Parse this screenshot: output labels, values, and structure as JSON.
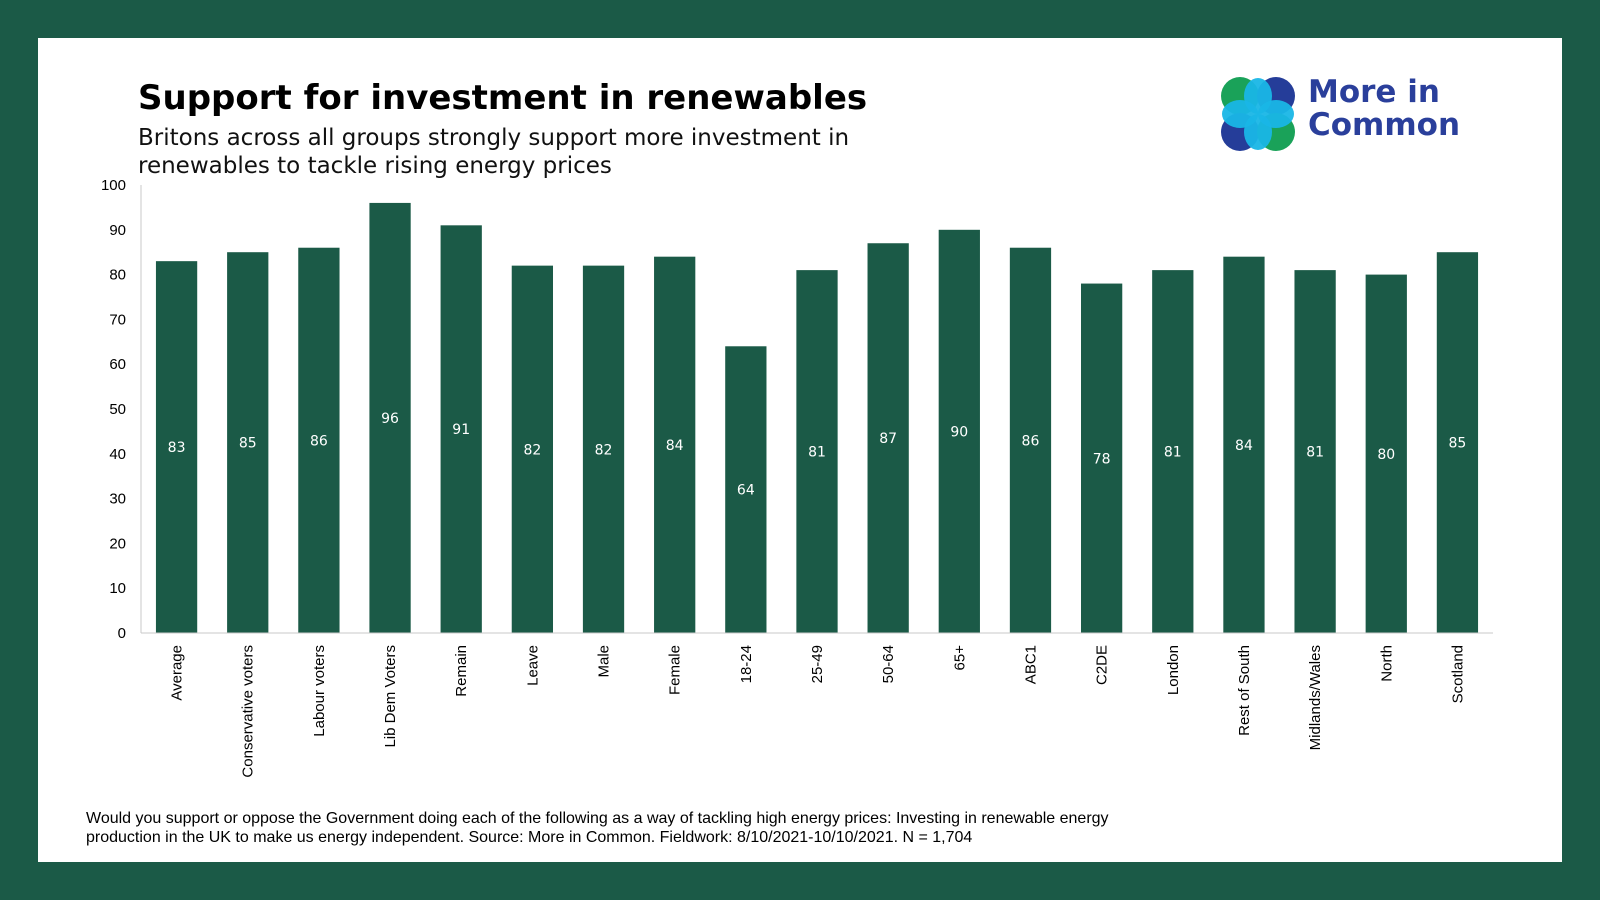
{
  "page": {
    "title": "Support for investment in renewables",
    "subtitle": "Britons across all groups strongly support more investment in renewables to tackle rising energy prices",
    "footnote": "Would you support or oppose the Government doing each of the following as a way of tackling high energy prices: Investing in renewable energy production in the UK to make us energy independent. Source: More in Common. Fieldwork: 8/10/2021-10/10/2021. N = 1,704",
    "logo": {
      "line1": "More in",
      "line2": "Common",
      "colors": {
        "green": "#1aa259",
        "cyan": "#19b6e6",
        "navy": "#253d99"
      }
    }
  },
  "colors": {
    "frame": "#1b5a47",
    "bar": "#1b5a47",
    "bar_label": "#ffffff"
  },
  "chart_data": {
    "type": "bar",
    "title": "Support for investment in renewables",
    "xlabel": "",
    "ylabel": "",
    "ylim": [
      0,
      100
    ],
    "yticks": [
      0,
      10,
      20,
      30,
      40,
      50,
      60,
      70,
      80,
      90,
      100
    ],
    "grid": false,
    "categories": [
      "Average",
      "Conservative voters",
      "Labour voters",
      "Lib Dem Voters",
      "Remain",
      "Leave",
      "Male",
      "Female",
      "18-24",
      "25-49",
      "50-64",
      "65+",
      "ABC1",
      "C2DE",
      "London",
      "Rest of South",
      "Midlands/Wales",
      "North",
      "Scotland"
    ],
    "values": [
      83,
      85,
      86,
      96,
      91,
      82,
      82,
      84,
      64,
      81,
      87,
      90,
      86,
      78,
      81,
      84,
      81,
      80,
      85
    ]
  }
}
